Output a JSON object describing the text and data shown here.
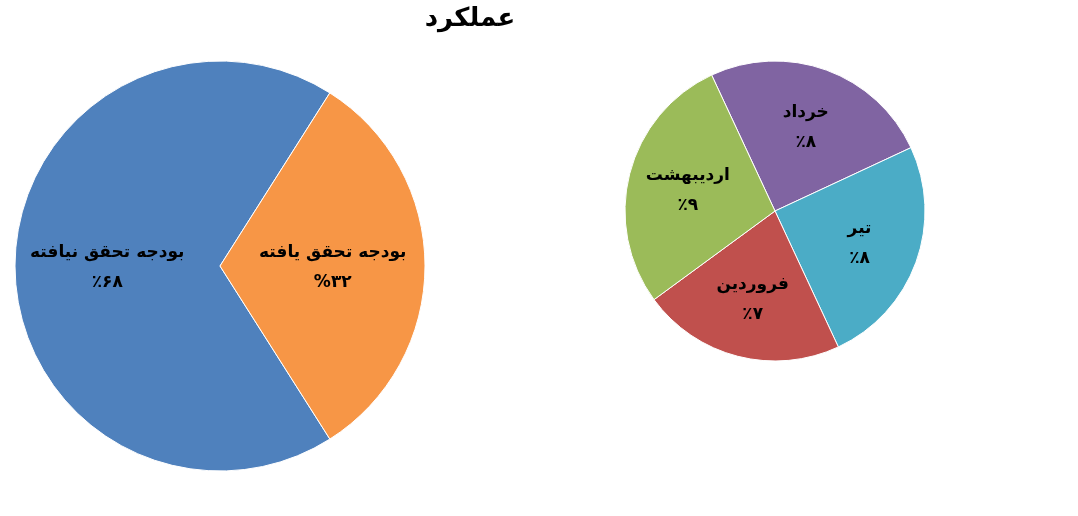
{
  "chart_data": [
    {
      "type": "pie",
      "title": "عملکرد",
      "categories": [
        "بودجه تحقق نیافته",
        "بودجه تحقق یافته"
      ],
      "values": [
        68,
        32
      ],
      "colors": [
        "#4f81bd",
        "#f79646"
      ],
      "value_labels": [
        "٪۶۸",
        "%۳۲"
      ]
    },
    {
      "type": "pie",
      "categories": [
        "خرداد",
        "تیر",
        "فروردین",
        "اردیبهشت"
      ],
      "values": [
        8,
        8,
        7,
        9
      ],
      "colors": [
        "#8064a2",
        "#4bacc6",
        "#c0504d",
        "#9bbb59"
      ],
      "value_labels": [
        "٪۸",
        "٪۸",
        "٪۷",
        "٪۹"
      ]
    }
  ]
}
